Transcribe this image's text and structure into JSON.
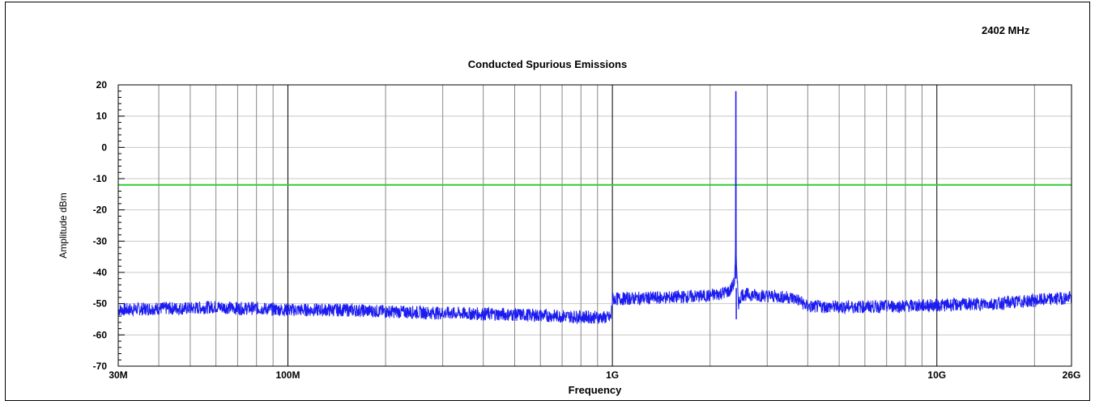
{
  "header": {
    "corner_label": "2402 MHz"
  },
  "chart_data": {
    "type": "line",
    "title": "Conducted Spurious Emissions",
    "xlabel": "Frequency",
    "ylabel": "Amplitude dBm",
    "x_scale": "log",
    "xlim": [
      30000000,
      26000000000
    ],
    "ylim": [
      -70,
      20
    ],
    "grid": true,
    "x_ticks": [
      {
        "value": 30000000,
        "label": "30M"
      },
      {
        "value": 100000000,
        "label": "100M"
      },
      {
        "value": 1000000000,
        "label": "1G"
      },
      {
        "value": 10000000000,
        "label": "10G"
      },
      {
        "value": 26000000000,
        "label": "26G"
      }
    ],
    "y_ticks": [
      20,
      10,
      0,
      -10,
      -20,
      -30,
      -40,
      -50,
      -60,
      -70
    ],
    "limit_line": {
      "y": -12,
      "color": "#33cc33"
    },
    "series": [
      {
        "color": "#1c1cf0",
        "x": [
          30000000,
          40000000,
          50000000,
          60000000,
          70000000,
          80000000,
          100000000,
          150000000,
          200000000,
          300000000,
          500000000,
          700000000,
          990000000,
          1000000000,
          1500000000,
          2000000000,
          2300000000,
          2380000000,
          2395000000,
          2402000000,
          2409000000,
          2420000000,
          2450000000,
          2500000000,
          3000000000,
          3500000000,
          3700000000,
          4000000000,
          6000000000,
          10000000000,
          15000000000,
          20000000000,
          26000000000
        ],
        "y": [
          -52,
          -51.5,
          -51.5,
          -51,
          -51.5,
          -51.5,
          -52,
          -52,
          -52.5,
          -53,
          -53.5,
          -54,
          -54.5,
          -48.5,
          -48,
          -47.5,
          -46,
          -43,
          -35,
          18,
          -35,
          -42,
          -50,
          -47,
          -47.5,
          -48,
          -48.5,
          -51,
          -51,
          -50.5,
          -50,
          -49,
          -48
        ]
      }
    ]
  }
}
